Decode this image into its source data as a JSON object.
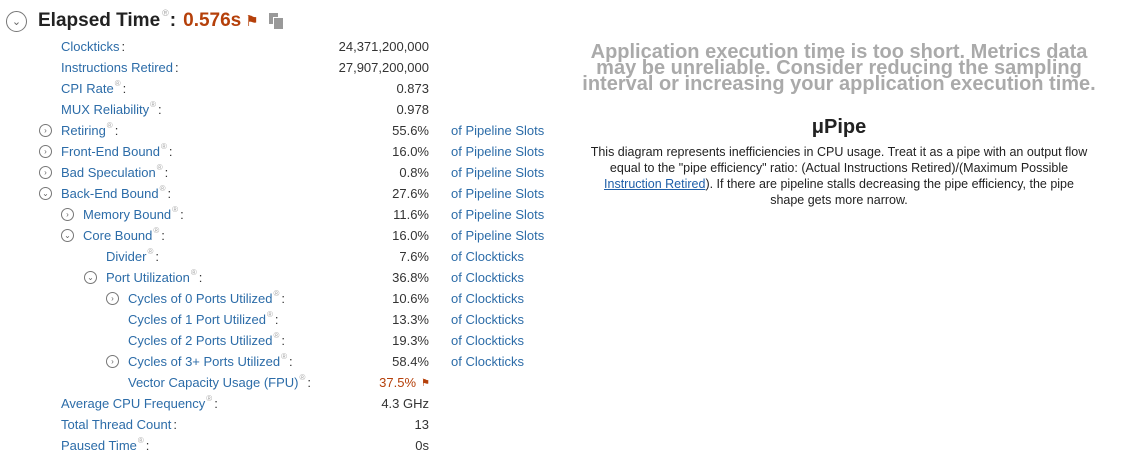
{
  "header": {
    "title": "Elapsed Time",
    "help_mark": "®",
    "colon": ":",
    "value": "0.576s",
    "flag_icon": "flag-icon",
    "copy_icon": "copy-icon"
  },
  "metrics": [
    {
      "label": "Clockticks",
      "help": false,
      "value": "24,371,200,000",
      "unit": ""
    },
    {
      "label": "Instructions Retired",
      "help": false,
      "value": "27,907,200,000",
      "unit": ""
    },
    {
      "label": "CPI Rate",
      "help": true,
      "value": "0.873",
      "unit": ""
    },
    {
      "label": "MUX Reliability",
      "help": true,
      "value": "0.978",
      "unit": ""
    },
    {
      "label": "Retiring",
      "help": true,
      "toggle": "collapsed",
      "value": "55.6%",
      "unit": "of Pipeline Slots"
    },
    {
      "label": "Front-End Bound",
      "help": true,
      "toggle": "collapsed",
      "value": "16.0%",
      "unit": "of Pipeline Slots"
    },
    {
      "label": "Bad Speculation",
      "help": true,
      "toggle": "collapsed",
      "value": "0.8%",
      "unit": "of Pipeline Slots"
    },
    {
      "label": "Back-End Bound",
      "help": true,
      "toggle": "expanded",
      "value": "27.6%",
      "unit": "of Pipeline Slots"
    },
    {
      "label": "Memory Bound",
      "help": true,
      "toggle": "collapsed",
      "value": "11.6%",
      "unit": "of Pipeline Slots"
    },
    {
      "label": "Core Bound",
      "help": true,
      "toggle": "expanded",
      "value": "16.0%",
      "unit": "of Pipeline Slots"
    },
    {
      "label": "Divider",
      "help": true,
      "value": "7.6%",
      "unit": "of Clockticks"
    },
    {
      "label": "Port Utilization",
      "help": true,
      "toggle": "expanded",
      "value": "36.8%",
      "unit": "of Clockticks"
    },
    {
      "label": "Cycles of 0 Ports Utilized",
      "help": true,
      "toggle": "collapsed",
      "value": "10.6%",
      "unit": "of Clockticks"
    },
    {
      "label": "Cycles of 1 Port Utilized",
      "help": true,
      "value": "13.3%",
      "unit": "of Clockticks"
    },
    {
      "label": "Cycles of 2 Ports Utilized",
      "help": true,
      "value": "19.3%",
      "unit": "of Clockticks"
    },
    {
      "label": "Cycles of 3+ Ports Utilized",
      "help": true,
      "toggle": "collapsed",
      "value": "58.4%",
      "unit": "of Clockticks"
    },
    {
      "label": "Vector Capacity Usage (FPU)",
      "help": true,
      "value": "37.5%",
      "unit": "",
      "flagged": true
    },
    {
      "label": "Average CPU Frequency",
      "help": true,
      "value": "4.3 GHz",
      "unit": ""
    },
    {
      "label": "Total Thread Count",
      "help": false,
      "value": "13",
      "unit": ""
    },
    {
      "label": "Paused Time",
      "help": true,
      "value": "0s",
      "unit": ""
    }
  ],
  "warning": {
    "line1": "Application execution time is too short. Metrics data",
    "line2": "may be unreliable. Consider reducing the sampling",
    "line3": "interval or increasing your application execution time."
  },
  "upipe": {
    "title": "μPipe",
    "desc_line1": "This diagram represents inefficiencies in CPU usage. Treat it as a pipe with an output flow",
    "desc_line2": "equal to the \"pipe efficiency\" ratio: (Actual Instructions Retired)/(Maximum Possible",
    "desc_link": "Instruction Retired",
    "desc_line3_rest": "). If there are pipeline stalls decreasing the pipe efficiency, the pipe",
    "desc_line4": "shape gets more narrow."
  },
  "colors": {
    "link": "#2c6ca8",
    "flag": "#b5400a",
    "warning_text": "#aaaaaa"
  }
}
